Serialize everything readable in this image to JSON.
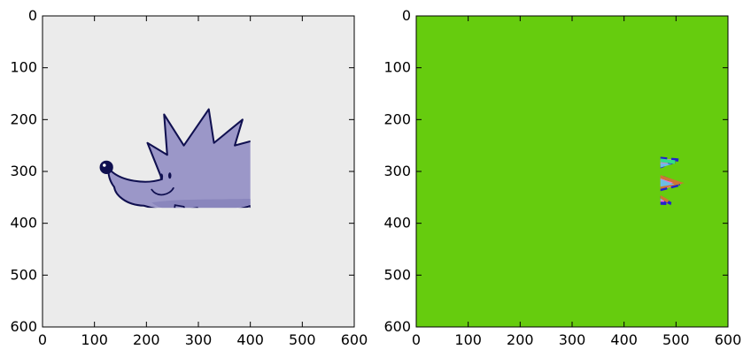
{
  "chart_data": [
    {
      "type": "image",
      "title": "",
      "xlabel": "",
      "ylabel": "",
      "xlim": [
        0,
        600
      ],
      "ylim": [
        600,
        0
      ],
      "xticks": [
        0,
        100,
        200,
        300,
        400,
        500,
        600
      ],
      "yticks": [
        0,
        100,
        200,
        300,
        400,
        500,
        600
      ],
      "x_tick_labels": [
        "0",
        "100",
        "200",
        "300",
        "400",
        "500",
        "600"
      ],
      "y_tick_labels": [
        "0",
        "100",
        "200",
        "300",
        "400",
        "500",
        "600"
      ],
      "image_content": "cartoon-hedgehog",
      "colors": {
        "background": "#ebebeb",
        "body": "#9b97c8",
        "belly": "#8a86bd",
        "outline": "#101050"
      }
    },
    {
      "type": "image",
      "title": "",
      "xlabel": "",
      "ylabel": "",
      "xlim": [
        0,
        600
      ],
      "ylim": [
        600,
        0
      ],
      "xticks": [
        0,
        100,
        200,
        300,
        400,
        500,
        600
      ],
      "yticks": [
        0,
        100,
        200,
        300,
        400,
        500,
        600
      ],
      "x_tick_labels": [
        "0",
        "100",
        "200",
        "300",
        "400",
        "500",
        "600"
      ],
      "y_tick_labels": [
        "0",
        "100",
        "200",
        "300",
        "400",
        "500",
        "600"
      ],
      "image_content": "segmented-hedgehog",
      "colors": {
        "background": "#66cc0e",
        "body": "#6cbde6",
        "belly": "#ee10e6",
        "segments": [
          "#ff0000",
          "#2222cc",
          "#ff66cc",
          "#33dd88",
          "#cc7733",
          "#ffcc00",
          "#aa66ff",
          "#000000",
          "#88ff66",
          "#ff9933"
        ]
      }
    }
  ]
}
